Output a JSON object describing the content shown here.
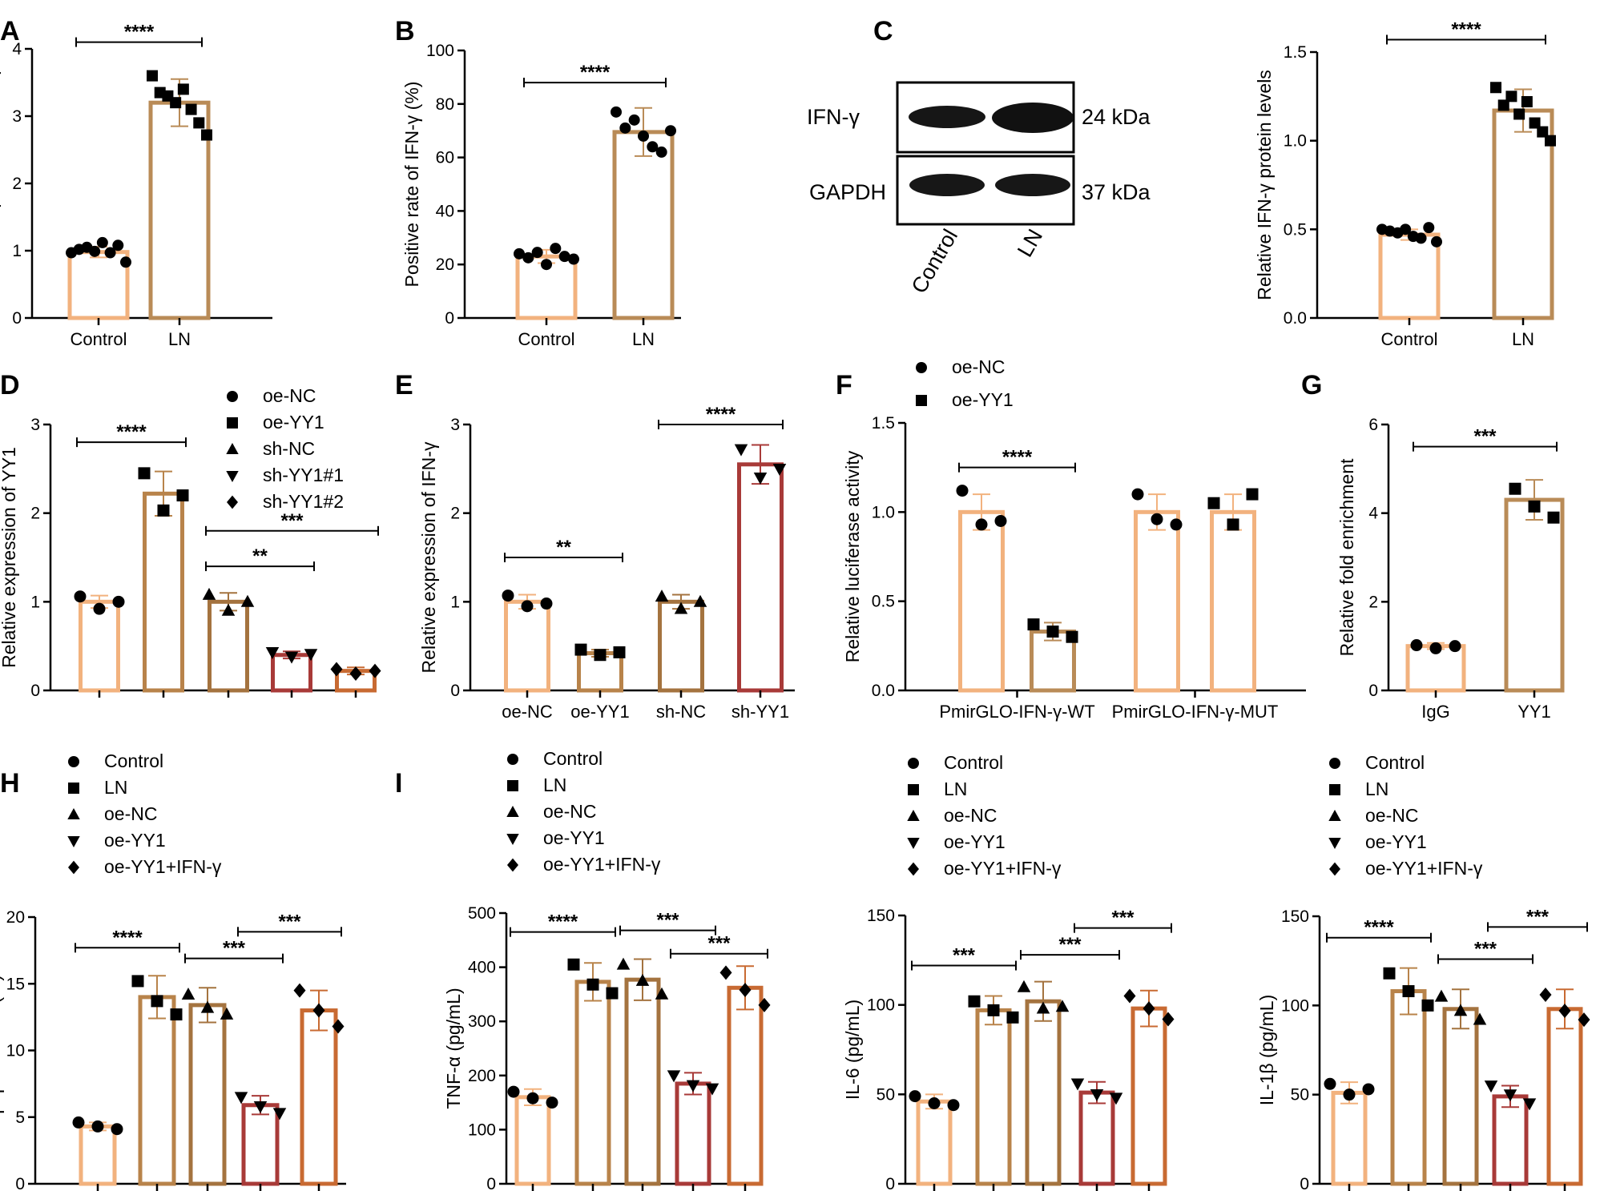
{
  "colors": {
    "c1": "#f2b27e",
    "c2": "#b8834a",
    "c3": "#a4733f",
    "c4": "#a83a38",
    "c5": "#c86a32",
    "ln": "#b98b57"
  },
  "chart_data": [
    {
      "id": "A",
      "label": "A",
      "type": "bar",
      "ylabel": "Relative expression of IFN-γ",
      "ylim": [
        0,
        4
      ],
      "yticks": [
        "0",
        "1",
        "2",
        "3",
        "4"
      ],
      "ytick_values": [
        0,
        1,
        2,
        3,
        4
      ],
      "categories": [
        "Control",
        "LN"
      ],
      "values": [
        0.98,
        3.2
      ],
      "errors": [
        0.08,
        0.35
      ],
      "markers": [
        "circle",
        "square"
      ],
      "points": [
        [
          0.97,
          1.02,
          1.05,
          0.99,
          1.12,
          0.97,
          1.08,
          0.83
        ],
        [
          3.6,
          3.35,
          3.3,
          3.2,
          3.4,
          3.1,
          2.9,
          2.72
        ]
      ],
      "significance": [
        {
          "from": 0,
          "to": 1,
          "label": "****",
          "level": 4.1
        }
      ]
    },
    {
      "id": "B",
      "label": "B",
      "type": "bar",
      "ylabel": "Positive rate of IFN-γ (%)",
      "ylim": [
        0,
        100
      ],
      "yticks": [
        "0",
        "20",
        "40",
        "60",
        "80",
        "100"
      ],
      "ytick_values": [
        0,
        20,
        40,
        60,
        80,
        100
      ],
      "categories": [
        "Control",
        "LN"
      ],
      "values": [
        23,
        69.5
      ],
      "errors": [
        2.5,
        9
      ],
      "markers": [
        "circle",
        "circle"
      ],
      "points": [
        [
          24,
          22.5,
          24.5,
          20,
          26,
          23,
          22
        ],
        [
          77,
          71,
          74,
          68,
          64,
          62,
          70
        ]
      ],
      "significance": [
        {
          "from": 0,
          "to": 1,
          "label": "****",
          "level": 88
        }
      ]
    },
    {
      "id": "C",
      "label": "C",
      "type": "bar",
      "ylabel": "Relative IFN-γ protein levels",
      "ylim": [
        0,
        1.5
      ],
      "yticks": [
        "0.0",
        "0.5",
        "1.0",
        "1.5"
      ],
      "ytick_values": [
        0,
        0.5,
        1.0,
        1.5
      ],
      "categories": [
        "Control",
        "LN"
      ],
      "values": [
        0.47,
        1.17
      ],
      "errors": [
        0.03,
        0.12
      ],
      "markers": [
        "circle",
        "square"
      ],
      "points": [
        [
          0.5,
          0.49,
          0.48,
          0.5,
          0.46,
          0.45,
          0.51,
          0.43
        ],
        [
          1.3,
          1.2,
          1.25,
          1.15,
          1.22,
          1.1,
          1.05,
          1.0
        ]
      ],
      "significance": [
        {
          "from": 0,
          "to": 1,
          "label": "****",
          "level": 1.57
        }
      ]
    },
    {
      "id": "D",
      "label": "D",
      "type": "bar",
      "ylabel": "Relative expression of YY1",
      "ylim": [
        0,
        3
      ],
      "yticks": [
        "0",
        "1",
        "2",
        "3"
      ],
      "ytick_values": [
        0,
        1,
        2,
        3
      ],
      "categories": [
        "oe-NC",
        "oe-YY1",
        "sh-NC",
        "sh-YY1#1",
        "sh-YY1#2"
      ],
      "show_categories": false,
      "values": [
        1.0,
        2.22,
        1.0,
        0.4,
        0.22
      ],
      "errors": [
        0.07,
        0.25,
        0.1,
        0.04,
        0.04
      ],
      "markers": [
        "circle",
        "square",
        "triangle",
        "tridown",
        "diamond"
      ],
      "points": [
        [
          1.06,
          0.92,
          1.0
        ],
        [
          2.45,
          2.03,
          2.2
        ],
        [
          1.08,
          0.9,
          1.0
        ],
        [
          0.43,
          0.38,
          0.41
        ],
        [
          0.24,
          0.19,
          0.22
        ]
      ],
      "legend": [
        "oe-NC",
        "oe-YY1",
        "sh-NC",
        "sh-YY1#1",
        "sh-YY1#2"
      ],
      "significance": [
        {
          "from": 0,
          "to": 1,
          "label": "****",
          "level": 2.8
        },
        {
          "from": 2,
          "to": 3,
          "label": "**",
          "level": 1.4
        },
        {
          "from": 2,
          "to": 4,
          "label": "***",
          "level": 1.8
        }
      ]
    },
    {
      "id": "E",
      "label": "E",
      "type": "bar",
      "ylabel": "Relative expression of IFN-γ",
      "ylim": [
        0,
        3
      ],
      "yticks": [
        "0",
        "1",
        "2",
        "3"
      ],
      "ytick_values": [
        0,
        1,
        2,
        3
      ],
      "categories": [
        "oe-NC",
        "oe-YY1",
        "sh-NC",
        "sh-YY1"
      ],
      "values": [
        1.0,
        0.42,
        1.0,
        2.55
      ],
      "errors": [
        0.08,
        0.04,
        0.08,
        0.22
      ],
      "markers": [
        "circle",
        "square",
        "triangle",
        "tridown"
      ],
      "points": [
        [
          1.07,
          0.95,
          0.98
        ],
        [
          0.46,
          0.4,
          0.43
        ],
        [
          1.06,
          0.92,
          1.0
        ],
        [
          2.72,
          2.4,
          2.5
        ]
      ],
      "significance": [
        {
          "from": 0,
          "to": 1,
          "label": "**",
          "level": 1.5
        },
        {
          "from": 2,
          "to": 3,
          "label": "****",
          "level": 3.0
        }
      ]
    },
    {
      "id": "F",
      "label": "F",
      "type": "bar",
      "ylabel": "Relative luciferase activity",
      "ylim": [
        0,
        1.5
      ],
      "yticks": [
        "0.0",
        "0.5",
        "1.0",
        "1.5"
      ],
      "ytick_values": [
        0,
        0.5,
        1.0,
        1.5
      ],
      "categories": [
        "PmirGLO-IFN-γ-WT",
        "PmirGLO-IFN-γ-MUT"
      ],
      "series": [
        {
          "name": "oe-NC",
          "values": [
            1.0,
            1.0
          ],
          "errors": [
            0.1,
            0.1
          ],
          "marker": "circle",
          "points": [
            [
              1.12,
              0.93,
              0.95
            ],
            [
              1.1,
              0.96,
              0.93
            ]
          ]
        },
        {
          "name": "oe-YY1",
          "values": [
            0.33,
            1.0
          ],
          "errors": [
            0.05,
            0.1
          ],
          "marker": "square",
          "points": [
            [
              0.37,
              0.33,
              0.3
            ],
            [
              1.05,
              0.93,
              1.1
            ]
          ]
        }
      ],
      "legend": [
        "oe-NC",
        "oe-YY1"
      ],
      "significance": [
        {
          "from": 0,
          "to": 1,
          "label": "****",
          "level": 1.25
        }
      ]
    },
    {
      "id": "G",
      "label": "G",
      "type": "bar",
      "ylabel": "Relative fold enrichment",
      "ylim": [
        0,
        6
      ],
      "yticks": [
        "0",
        "2",
        "4",
        "6"
      ],
      "ytick_values": [
        0,
        2,
        4,
        6
      ],
      "categories": [
        "IgG",
        "YY1"
      ],
      "values": [
        1.0,
        4.3
      ],
      "errors": [
        0.07,
        0.45
      ],
      "markers": [
        "circle",
        "square"
      ],
      "points": [
        [
          1.02,
          0.95,
          1.0
        ],
        [
          4.55,
          4.15,
          3.9
        ]
      ],
      "significance": [
        {
          "from": 0,
          "to": 1,
          "label": "***",
          "level": 5.5
        }
      ]
    },
    {
      "id": "H",
      "label": "H",
      "type": "bar",
      "ylabel": "Apoptosis rate (%)",
      "ylim": [
        0,
        20
      ],
      "yticks": [
        "0",
        "5",
        "10",
        "15",
        "20"
      ],
      "ytick_values": [
        0,
        5,
        10,
        15,
        20
      ],
      "categories": [
        "Control",
        "LN",
        "oe-NC",
        "oe-YY1",
        "oe-YY1+IFN-γ"
      ],
      "show_categories": false,
      "values": [
        4.3,
        14.0,
        13.4,
        5.9,
        13.0
      ],
      "errors": [
        0.3,
        1.6,
        1.3,
        0.7,
        1.5
      ],
      "markers": [
        "circle",
        "square",
        "triangle",
        "tridown",
        "diamond"
      ],
      "points": [
        [
          4.6,
          4.3,
          4.1
        ],
        [
          15.2,
          13.7,
          12.7
        ],
        [
          14.2,
          13.2,
          12.7
        ],
        [
          6.5,
          5.8,
          5.3
        ],
        [
          14.5,
          13.0,
          11.8
        ]
      ],
      "legend": [
        "Control",
        "LN",
        "oe-NC",
        "oe-YY1",
        "oe-YY1+IFN-γ"
      ],
      "significance": [
        {
          "from": 0,
          "to": 1,
          "label": "****",
          "level": 17.7
        },
        {
          "from": 2,
          "to": 3,
          "label": "***",
          "level": 16.9
        },
        {
          "from": 3,
          "to": 4,
          "label": "***",
          "level": 18.9
        }
      ]
    },
    {
      "id": "I1",
      "label": "I",
      "type": "bar",
      "ylabel": "TNF-α (pg/mL)",
      "ylim": [
        0,
        500
      ],
      "yticks": [
        "0",
        "100",
        "200",
        "300",
        "400",
        "500"
      ],
      "ytick_values": [
        0,
        100,
        200,
        300,
        400,
        500
      ],
      "categories": [
        "Control",
        "LN",
        "oe-NC",
        "oe-YY1",
        "oe-YY1+IFN-γ"
      ],
      "show_categories": false,
      "values": [
        160,
        373,
        377,
        185,
        362
      ],
      "errors": [
        15,
        35,
        38,
        20,
        40
      ],
      "markers": [
        "circle",
        "square",
        "triangle",
        "tridown",
        "diamond"
      ],
      "points": [
        [
          170,
          158,
          150
        ],
        [
          405,
          368,
          352
        ],
        [
          405,
          375,
          350
        ],
        [
          200,
          182,
          176
        ],
        [
          390,
          358,
          330
        ]
      ],
      "legend": [
        "Control",
        "LN",
        "oe-NC",
        "oe-YY1",
        "oe-YY1+IFN-γ"
      ],
      "significance": [
        {
          "from": 0,
          "to": 1,
          "label": "****",
          "level": 465
        },
        {
          "from": 2,
          "to": 3,
          "label": "***",
          "level": 468
        },
        {
          "from": 3,
          "to": 4,
          "label": "***",
          "level": 425
        }
      ]
    },
    {
      "id": "I2",
      "label": "",
      "type": "bar",
      "ylabel": "IL-6 (pg/mL)",
      "ylim": [
        0,
        150
      ],
      "yticks": [
        "0",
        "50",
        "100",
        "150"
      ],
      "ytick_values": [
        0,
        50,
        100,
        150
      ],
      "categories": [
        "Control",
        "LN",
        "oe-NC",
        "oe-YY1",
        "oe-YY1+IFN-γ"
      ],
      "show_categories": false,
      "values": [
        46,
        97,
        102,
        51,
        98
      ],
      "errors": [
        4,
        8,
        11,
        6,
        10
      ],
      "markers": [
        "circle",
        "square",
        "triangle",
        "tridown",
        "diamond"
      ],
      "points": [
        [
          49,
          45,
          44
        ],
        [
          102,
          97,
          93
        ],
        [
          110,
          98,
          99
        ],
        [
          56,
          50,
          48
        ],
        [
          105,
          98,
          92
        ]
      ],
      "legend": [
        "Control",
        "LN",
        "oe-NC",
        "oe-YY1",
        "oe-YY1+IFN-γ"
      ],
      "significance": [
        {
          "from": 0,
          "to": 1,
          "label": "***",
          "level": 122
        },
        {
          "from": 2,
          "to": 3,
          "label": "***",
          "level": 128
        },
        {
          "from": 3,
          "to": 4,
          "label": "***",
          "level": 143
        }
      ]
    },
    {
      "id": "I3",
      "label": "",
      "type": "bar",
      "ylabel": "IL-1β  (pg/mL)",
      "ylim": [
        0,
        150
      ],
      "yticks": [
        "0",
        "50",
        "100",
        "150"
      ],
      "ytick_values": [
        0,
        50,
        100,
        150
      ],
      "categories": [
        "Control",
        "LN",
        "oe-NC",
        "oe-YY1",
        "oe-YY1+IFN-γ"
      ],
      "show_categories": false,
      "values": [
        51,
        108,
        98,
        49,
        98
      ],
      "errors": [
        6,
        13,
        11,
        6,
        11
      ],
      "markers": [
        "circle",
        "square",
        "triangle",
        "tridown",
        "diamond"
      ],
      "points": [
        [
          56,
          50,
          53
        ],
        [
          118,
          108,
          100
        ],
        [
          105,
          97,
          92
        ],
        [
          55,
          50,
          45
        ],
        [
          106,
          97,
          92
        ]
      ],
      "legend": [
        "Control",
        "LN",
        "oe-NC",
        "oe-YY1",
        "oe-YY1+IFN-γ"
      ],
      "significance": [
        {
          "from": 0,
          "to": 1,
          "label": "****",
          "level": 138
        },
        {
          "from": 2,
          "to": 3,
          "label": "***",
          "level": 126
        },
        {
          "from": 3,
          "to": 4,
          "label": "***",
          "level": 144
        }
      ]
    }
  ],
  "western_blot": {
    "bands": [
      "IFN-γ",
      "GAPDH"
    ],
    "sizes": [
      "24 kDa",
      "37 kDa"
    ],
    "lanes": [
      "Control",
      "LN"
    ]
  }
}
